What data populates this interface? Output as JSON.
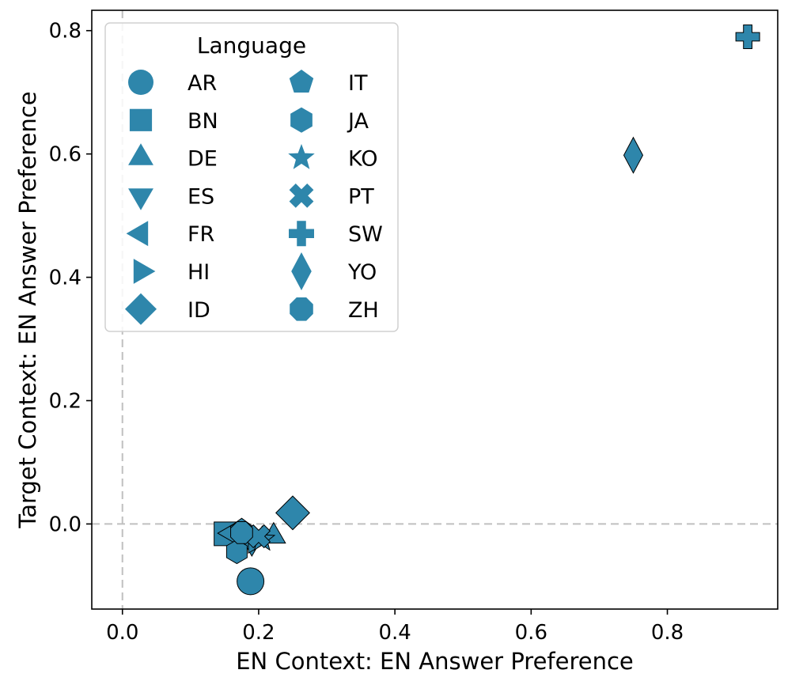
{
  "chart_data": {
    "type": "scatter",
    "title": "",
    "xlabel": "EN Context: EN Answer Preference",
    "ylabel": "Target Context: EN Answer Preference",
    "xlim": [
      -0.045,
      0.962
    ],
    "ylim": [
      -0.138,
      0.833
    ],
    "xticks": [
      0.0,
      0.2,
      0.4,
      0.6,
      0.8
    ],
    "yticks": [
      0.0,
      0.2,
      0.4,
      0.6,
      0.8
    ],
    "xtick_labels": [
      "0.0",
      "0.2",
      "0.4",
      "0.6",
      "0.8"
    ],
    "ytick_labels": [
      "0.0",
      "0.2",
      "0.4",
      "0.6",
      "0.8"
    ],
    "reference_lines": {
      "x": 0.0,
      "y": 0.0,
      "style": "dashed",
      "color": "#c0c0c0"
    },
    "marker_color": "#2e86ab",
    "legend": {
      "title": "Language",
      "position": "upper-left",
      "columns": 2
    },
    "points": [
      {
        "language": "AR",
        "marker": "circle",
        "x": 0.188,
        "y": -0.093
      },
      {
        "language": "BN",
        "marker": "square",
        "x": 0.152,
        "y": -0.016
      },
      {
        "language": "DE",
        "marker": "triangle-up",
        "x": 0.222,
        "y": -0.02
      },
      {
        "language": "ES",
        "marker": "triangle-down",
        "x": 0.19,
        "y": -0.03
      },
      {
        "language": "FR",
        "marker": "triangle-left",
        "x": 0.16,
        "y": -0.015
      },
      {
        "language": "HI",
        "marker": "triangle-right",
        "x": 0.195,
        "y": -0.028
      },
      {
        "language": "ID",
        "marker": "diamond",
        "x": 0.25,
        "y": 0.018
      },
      {
        "language": "IT",
        "marker": "pentagon",
        "x": 0.175,
        "y": -0.01
      },
      {
        "language": "JA",
        "marker": "hexagon",
        "x": 0.168,
        "y": -0.045
      },
      {
        "language": "KO",
        "marker": "star",
        "x": 0.205,
        "y": -0.025
      },
      {
        "language": "PT",
        "marker": "x-filled",
        "x": 0.2,
        "y": -0.02
      },
      {
        "language": "SW",
        "marker": "plus-filled",
        "x": 0.918,
        "y": 0.79
      },
      {
        "language": "YO",
        "marker": "thin-diamond",
        "x": 0.75,
        "y": 0.598
      },
      {
        "language": "ZH",
        "marker": "octagon",
        "x": 0.175,
        "y": -0.014
      }
    ]
  }
}
